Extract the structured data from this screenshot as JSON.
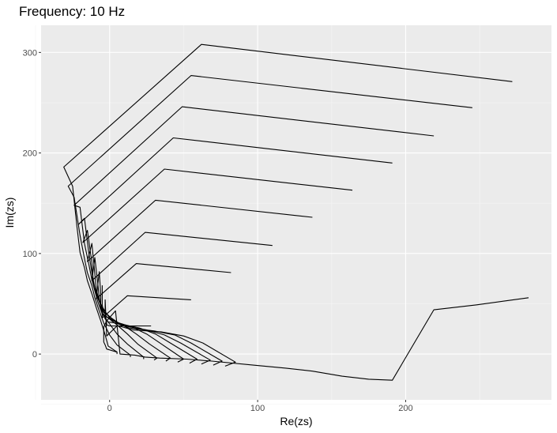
{
  "chart_data": {
    "type": "line",
    "title": "Frequency: 10 Hz",
    "xlabel": "Re(zs)",
    "ylabel": "Im(zs)",
    "xlim": [
      -46.3,
      298.5
    ],
    "ylim": [
      -45.5,
      327
    ],
    "x_ticks": [
      0,
      100,
      200
    ],
    "y_ticks": [
      0,
      100,
      200,
      300
    ],
    "x_minor": [
      -50,
      50,
      150,
      250
    ],
    "y_minor": [
      -50,
      50,
      150,
      250
    ],
    "grid": true,
    "legend": "none",
    "colors": {
      "panel_bg": "#ebebeb",
      "grid_major": "#ffffff",
      "grid_minor": "#f5f5f5",
      "line": "#000000",
      "tick_text": "#4d4d4d"
    },
    "series": [
      {
        "x": [
          5,
          5,
          -1,
          -3,
          -6,
          -9,
          -12,
          -15,
          -17,
          -20,
          -22,
          -25,
          -31,
          62,
          272
        ],
        "y": [
          0,
          2,
          8,
          19,
          33,
          46,
          60,
          73,
          86,
          101,
          126,
          167,
          186,
          308,
          271
        ]
      },
      {
        "x": [
          14,
          14,
          5,
          0,
          -4,
          -7,
          -10,
          -12,
          -15,
          -17,
          -20,
          -24,
          -28,
          55,
          245
        ],
        "y": [
          -3,
          -1,
          9,
          19,
          31,
          43,
          56,
          68,
          81,
          95,
          118,
          156,
          167,
          277,
          245
        ]
      },
      {
        "x": [
          23,
          23,
          12,
          5,
          0,
          -5,
          -8,
          -10,
          -12,
          -14,
          -17,
          -20,
          -24,
          49,
          219
        ],
        "y": [
          -5,
          -3,
          10,
          20,
          30,
          40,
          52,
          63,
          74,
          89,
          110,
          146,
          148,
          246,
          217
        ]
      },
      {
        "x": [
          30,
          32,
          19,
          12,
          5,
          -2,
          -6,
          -8,
          -10,
          -12,
          -14,
          -17,
          -21,
          43,
          191
        ],
        "y": [
          -6,
          -4,
          10,
          20,
          29,
          37,
          48,
          57,
          66,
          81,
          100,
          135,
          129,
          215,
          190
        ]
      },
      {
        "x": [
          38,
          41,
          27,
          18,
          10,
          1,
          -4,
          -7,
          -9,
          -11,
          -12,
          -15,
          -18,
          37,
          164
        ],
        "y": [
          -7,
          -4,
          10,
          20,
          28,
          34,
          44,
          52,
          60,
          72,
          91,
          123,
          111,
          184,
          163
        ]
      },
      {
        "x": [
          46,
          50,
          34,
          25,
          15,
          4,
          -2,
          -5,
          -7,
          -9,
          -10,
          -12,
          -15,
          31,
          137
        ],
        "y": [
          -8,
          -5,
          11,
          20,
          27,
          32,
          40,
          47,
          53,
          64,
          80,
          110,
          92,
          153,
          136
        ]
      },
      {
        "x": [
          54,
          59,
          41,
          31,
          20,
          7,
          0,
          -4,
          -6,
          -7,
          -8,
          -10,
          -12,
          24,
          110
        ],
        "y": [
          -9,
          -5,
          11,
          20,
          26,
          30,
          37,
          42,
          46,
          56,
          70,
          96,
          73,
          121,
          108
        ]
      },
      {
        "x": [
          62,
          68,
          48,
          37,
          25,
          10,
          2,
          -2,
          -5,
          -6,
          -6,
          -7,
          -9,
          18,
          82
        ],
        "y": [
          -10,
          -6,
          11,
          19,
          24,
          28,
          34,
          37,
          40,
          47,
          60,
          82,
          55,
          90,
          81
        ]
      },
      {
        "x": [
          70,
          76,
          55,
          44,
          30,
          13,
          4,
          -1,
          -3,
          -4,
          -5,
          -5,
          -5,
          12,
          55
        ],
        "y": [
          -11,
          -7,
          11,
          19,
          23,
          26,
          31,
          32,
          35,
          39,
          49,
          68,
          36,
          58,
          54
        ]
      },
      {
        "x": [
          78,
          85,
          63,
          50,
          35,
          16,
          6,
          0,
          -2,
          -2,
          -3,
          -3,
          -2,
          5,
          28
        ],
        "y": [
          -12,
          -8,
          11,
          18,
          22,
          24,
          28,
          28,
          29,
          31,
          38,
          54,
          18,
          28,
          28
        ]
      },
      {
        "x": [
          4,
          5,
          -2,
          -3,
          -4,
          -4,
          -4,
          -4,
          -4,
          -2,
          4,
          7,
          17,
          24,
          34,
          52,
          69,
          97,
          119,
          137,
          157,
          175,
          191,
          219,
          248,
          283
        ],
        "y": [
          3,
          2,
          5,
          9,
          12,
          15,
          18,
          22,
          27,
          33,
          43,
          0,
          -1,
          -3,
          -4,
          -5,
          -7,
          -11,
          -14,
          -17,
          -22,
          -25,
          -26,
          44,
          49,
          56
        ]
      }
    ]
  }
}
